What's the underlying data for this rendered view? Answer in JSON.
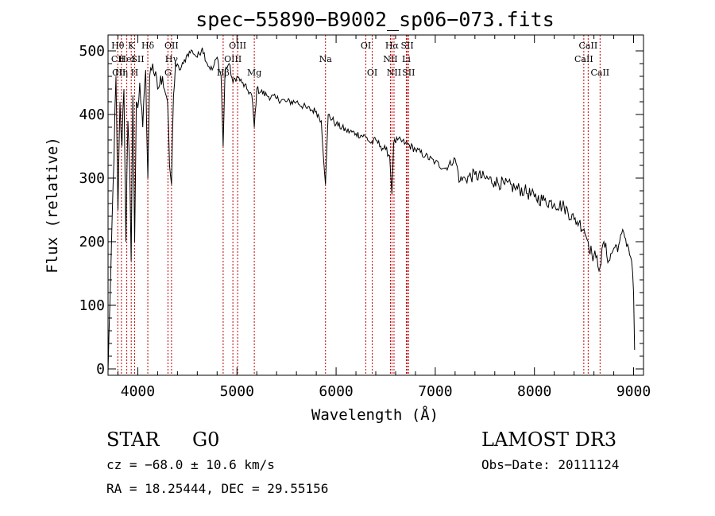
{
  "chart_data": {
    "type": "line",
    "title": "spec−55890−B9002_sp06−073.fits",
    "xlabel": "Wavelength (Å)",
    "ylabel": "Flux (relative)",
    "xlim": [
      3700,
      9100
    ],
    "ylim": [
      -10,
      525
    ],
    "x_ticks": [
      4000,
      5000,
      6000,
      7000,
      8000,
      9000
    ],
    "y_ticks": [
      0,
      100,
      200,
      300,
      400,
      500
    ],
    "series": [
      {
        "name": "spectrum",
        "x": [
          3700,
          3720,
          3740,
          3760,
          3780,
          3800,
          3820,
          3840,
          3860,
          3880,
          3900,
          3920,
          3933,
          3950,
          3968,
          3985,
          4000,
          4020,
          4050,
          4080,
          4101,
          4120,
          4150,
          4200,
          4250,
          4300,
          4320,
          4340,
          4360,
          4380,
          4420,
          4460,
          4500,
          4550,
          4600,
          4650,
          4700,
          4750,
          4800,
          4840,
          4861,
          4880,
          4920,
          4960,
          5000,
          5050,
          5100,
          5150,
          5175,
          5200,
          5300,
          5400,
          5500,
          5600,
          5700,
          5800,
          5850,
          5893,
          5920,
          6000,
          6100,
          6200,
          6300,
          6350,
          6400,
          6450,
          6500,
          6540,
          6563,
          6580,
          6620,
          6700,
          6800,
          6900,
          7000,
          7100,
          7200,
          7250,
          7300,
          7400,
          7500,
          7600,
          7700,
          7800,
          7900,
          8000,
          8100,
          8200,
          8300,
          8400,
          8450,
          8500,
          8542,
          8580,
          8620,
          8662,
          8700,
          8750,
          8800,
          8850,
          8900,
          8950,
          8980,
          9000,
          9010
        ],
        "y": [
          -5,
          110,
          230,
          330,
          460,
          250,
          420,
          350,
          440,
          200,
          390,
          300,
          170,
          430,
          200,
          420,
          410,
          450,
          380,
          470,
          300,
          460,
          480,
          440,
          460,
          420,
          320,
          290,
          430,
          480,
          470,
          480,
          495,
          500,
          490,
          505,
          480,
          470,
          490,
          460,
          350,
          470,
          480,
          450,
          460,
          450,
          440,
          430,
          380,
          440,
          430,
          425,
          420,
          420,
          410,
          405,
          390,
          290,
          400,
          385,
          375,
          370,
          365,
          355,
          360,
          350,
          345,
          335,
          275,
          355,
          360,
          355,
          345,
          335,
          325,
          315,
          330,
          295,
          300,
          305,
          300,
          295,
          290,
          285,
          280,
          270,
          265,
          260,
          255,
          235,
          230,
          220,
          200,
          180,
          175,
          160,
          200,
          170,
          190,
          195,
          215,
          190,
          170,
          120,
          30
        ]
      }
    ],
    "line_markers": [
      {
        "label": "Hθ",
        "x": 3798,
        "row": 0
      },
      {
        "label": "CII",
        "x": 3800,
        "row": 1
      },
      {
        "label": "CII",
        "x": 3810,
        "row": 2
      },
      {
        "label": "Hη",
        "x": 3835,
        "row": 2
      },
      {
        "label": "HeI",
        "x": 3889,
        "row": 1
      },
      {
        "label": "K",
        "x": 3934,
        "row": 0
      },
      {
        "label": "H",
        "x": 3968,
        "row": 2
      },
      {
        "label": "SII",
        "x": 4000,
        "row": 1
      },
      {
        "label": "Hδ",
        "x": 4101,
        "row": 0
      },
      {
        "label": "OII",
        "x": 4340,
        "row": 0
      },
      {
        "label": "Hγ",
        "x": 4340,
        "row": 1
      },
      {
        "label": "G",
        "x": 4304,
        "row": 2
      },
      {
        "label": "OIII",
        "x": 5007,
        "row": 0
      },
      {
        "label": "OIII",
        "x": 4959,
        "row": 1
      },
      {
        "label": "Hβ",
        "x": 4861,
        "row": 2
      },
      {
        "label": "Mg",
        "x": 5175,
        "row": 2
      },
      {
        "label": "Na",
        "x": 5893,
        "row": 1
      },
      {
        "label": "OI",
        "x": 6300,
        "row": 0
      },
      {
        "label": "OI",
        "x": 6364,
        "row": 2
      },
      {
        "label": "Hα",
        "x": 6563,
        "row": 0
      },
      {
        "label": "NII",
        "x": 6548,
        "row": 1
      },
      {
        "label": "NII",
        "x": 6584,
        "row": 2
      },
      {
        "label": "SII",
        "x": 6717,
        "row": 0
      },
      {
        "label": "Li",
        "x": 6708,
        "row": 1
      },
      {
        "label": "SII",
        "x": 6731,
        "row": 2
      },
      {
        "label": "CaII",
        "x": 8542,
        "row": 0
      },
      {
        "label": "CaII",
        "x": 8498,
        "row": 1
      },
      {
        "label": "CaII",
        "x": 8662,
        "row": 2
      }
    ],
    "marker_lines_x": [
      3798,
      3835,
      3889,
      3934,
      3968,
      4101,
      4304,
      4340,
      4861,
      4959,
      5007,
      5175,
      5893,
      6300,
      6364,
      6548,
      6563,
      6584,
      6708,
      6717,
      6731,
      8498,
      8542,
      8662
    ]
  },
  "info": {
    "object_class": "STAR",
    "subclass": "G0",
    "survey": "LAMOST DR3",
    "redshift_text": "cz = −68.0 ± 10.6 km/s",
    "obs_date": "Obs−Date: 20111124",
    "coords": "RA =  18.25444, DEC =  29.55156"
  },
  "colors": {
    "marker": "#c00000",
    "axis": "#000000",
    "spectrum": "#000000"
  }
}
